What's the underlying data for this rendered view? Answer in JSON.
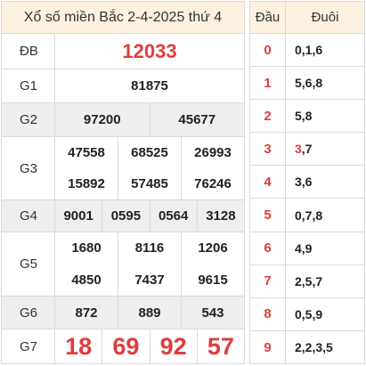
{
  "title": "Xổ số miền Bắc 2-4-2025 thứ 4",
  "prizes": [
    {
      "label": "ĐB",
      "rows": [
        [
          "12033"
        ]
      ],
      "style": "big",
      "alt": false,
      "h": 40
    },
    {
      "label": "G1",
      "rows": [
        [
          "81875"
        ]
      ],
      "style": "",
      "alt": false,
      "h": 38
    },
    {
      "label": "G2",
      "rows": [
        [
          "97200",
          "45677"
        ]
      ],
      "style": "",
      "alt": true,
      "h": 38
    },
    {
      "label": "G3",
      "rows": [
        [
          "47558",
          "68525",
          "26993"
        ],
        [
          "15892",
          "57485",
          "76246"
        ]
      ],
      "style": "",
      "alt": false,
      "h": 71
    },
    {
      "label": "G4",
      "rows": [
        [
          "9001",
          "0595",
          "0564",
          "3128"
        ]
      ],
      "style": "",
      "alt": true,
      "h": 36
    },
    {
      "label": "G5",
      "rows": [
        [
          "1680",
          "8116",
          "1206"
        ],
        [
          "4850",
          "7437",
          "9615"
        ]
      ],
      "style": "",
      "alt": false,
      "h": 72
    },
    {
      "label": "G6",
      "rows": [
        [
          "872",
          "889",
          "543"
        ]
      ],
      "style": "",
      "alt": true,
      "h": 37
    },
    {
      "label": "G7",
      "rows": [
        [
          "18",
          "69",
          "92",
          "57"
        ]
      ],
      "style": "huge",
      "alt": false,
      "h": 38
    }
  ],
  "loto": {
    "head_label": "Đầu",
    "tail_label": "Đuôi",
    "rows": [
      {
        "dau": "0",
        "duoi": [
          {
            "t": "0,1,6"
          }
        ]
      },
      {
        "dau": "1",
        "duoi": [
          {
            "t": "5,6,8"
          }
        ]
      },
      {
        "dau": "2",
        "duoi": [
          {
            "t": "5,8"
          }
        ]
      },
      {
        "dau": "3",
        "duoi": [
          {
            "t": "3",
            "hl": true
          },
          {
            "t": ",7"
          }
        ]
      },
      {
        "dau": "4",
        "duoi": [
          {
            "t": "3,6"
          }
        ]
      },
      {
        "dau": "5",
        "duoi": [
          {
            "t": "0,7,8"
          }
        ]
      },
      {
        "dau": "6",
        "duoi": [
          {
            "t": "4,9"
          }
        ]
      },
      {
        "dau": "7",
        "duoi": [
          {
            "t": "2,5,7"
          }
        ]
      },
      {
        "dau": "8",
        "duoi": [
          {
            "t": "0,5,9"
          }
        ]
      },
      {
        "dau": "9",
        "duoi": [
          {
            "t": "2,2,3,5"
          }
        ]
      }
    ]
  }
}
